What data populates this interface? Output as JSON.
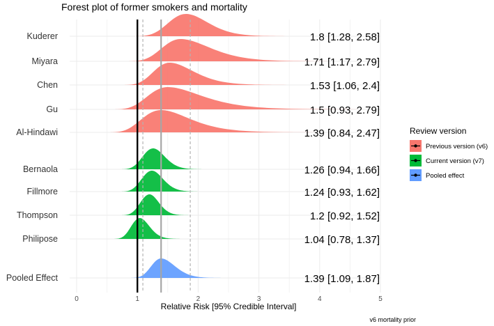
{
  "chart_data": {
    "type": "forest-ridgeline",
    "title": "Forest plot of former smokers and mortality",
    "xlabel": "Relative Risk [95% Credible Interval]",
    "caption": "v6 mortality prior",
    "xlim": [
      0,
      5
    ],
    "x_ticks": [
      "0",
      "1",
      "2",
      "3",
      "4",
      "5"
    ],
    "null_line": 1,
    "pooled_estimate": 1.39,
    "pooled_interval": [
      1.09,
      1.87
    ],
    "legend": {
      "title": "Review version",
      "position": "right",
      "entries": [
        {
          "key": "v6",
          "label": "Previous version (v6)",
          "color": "#F8766D"
        },
        {
          "key": "v7",
          "label": "Current version (v7)",
          "color": "#00BA38"
        },
        {
          "key": "pooled",
          "label": "Pooled effect",
          "color": "#619CFF"
        }
      ]
    },
    "studies": [
      {
        "name": "Kuderer",
        "group": "v6",
        "estimate": 1.8,
        "lower": 1.28,
        "upper": 2.58,
        "label": "1.8 [1.28, 2.58]"
      },
      {
        "name": "Miyara",
        "group": "v6",
        "estimate": 1.71,
        "lower": 1.17,
        "upper": 2.79,
        "label": "1.71 [1.17, 2.79]"
      },
      {
        "name": "Chen",
        "group": "v6",
        "estimate": 1.53,
        "lower": 1.06,
        "upper": 2.4,
        "label": "1.53 [1.06, 2.4]"
      },
      {
        "name": "Gu",
        "group": "v6",
        "estimate": 1.5,
        "lower": 0.93,
        "upper": 2.79,
        "label": "1.5 [0.93, 2.79]"
      },
      {
        "name": "Al-Hindawi",
        "group": "v6",
        "estimate": 1.39,
        "lower": 0.84,
        "upper": 2.47,
        "label": "1.39 [0.84, 2.47]"
      },
      {
        "name": "Bernaola",
        "group": "v7",
        "estimate": 1.26,
        "lower": 0.94,
        "upper": 1.66,
        "label": "1.26 [0.94, 1.66]"
      },
      {
        "name": "Fillmore",
        "group": "v7",
        "estimate": 1.24,
        "lower": 0.93,
        "upper": 1.62,
        "label": "1.24 [0.93, 1.62]"
      },
      {
        "name": "Thompson",
        "group": "v7",
        "estimate": 1.2,
        "lower": 0.92,
        "upper": 1.52,
        "label": "1.2 [0.92, 1.52]"
      },
      {
        "name": "Philipose",
        "group": "v7",
        "estimate": 1.04,
        "lower": 0.78,
        "upper": 1.37,
        "label": "1.04 [0.78, 1.37]"
      },
      {
        "name": "Pooled Effect",
        "group": "pooled",
        "estimate": 1.39,
        "lower": 1.09,
        "upper": 1.87,
        "label": "1.39 [1.09, 1.87]"
      }
    ]
  }
}
